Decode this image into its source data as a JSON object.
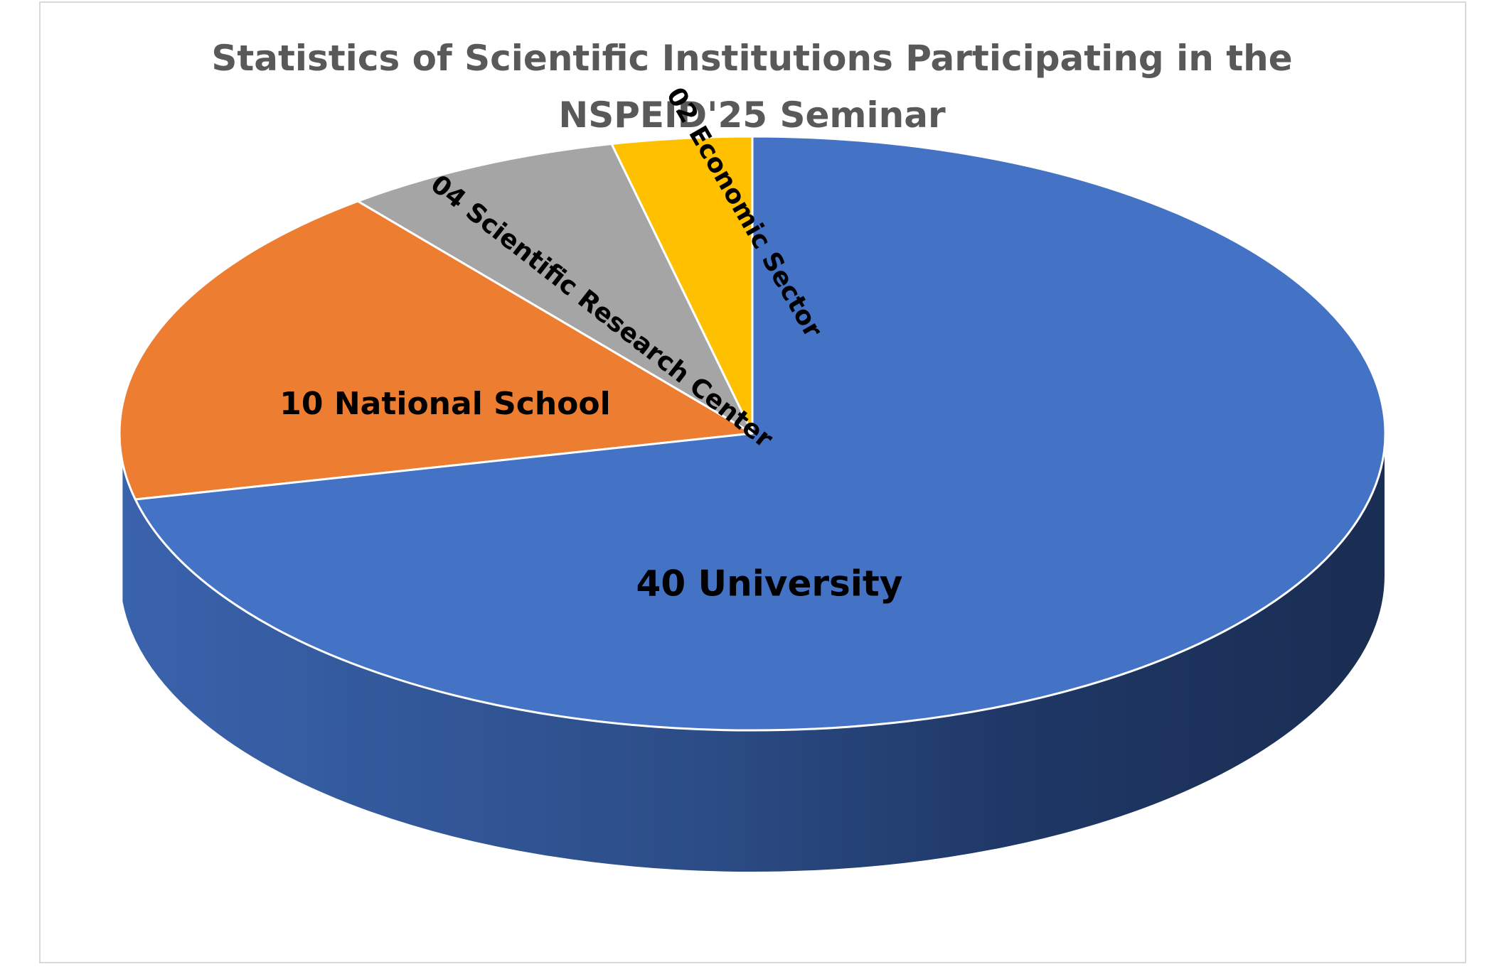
{
  "chart_data": {
    "type": "pie",
    "title_lines": [
      "Statistics of Scientific Institutions Participating in the",
      "NSPEID'25 Seminar"
    ],
    "slices": [
      {
        "label": "02 Economic Sector",
        "value": 2,
        "color": "#FFC000"
      },
      {
        "label": "04 Scientific Research Center",
        "value": 4,
        "color": "#A5A5A5"
      },
      {
        "label": "10 National School",
        "value": 10,
        "color": "#ED7D31"
      },
      {
        "label": "40 University",
        "value": 40,
        "color": "#4472C4"
      }
    ],
    "legend": "none",
    "style": "3d"
  }
}
